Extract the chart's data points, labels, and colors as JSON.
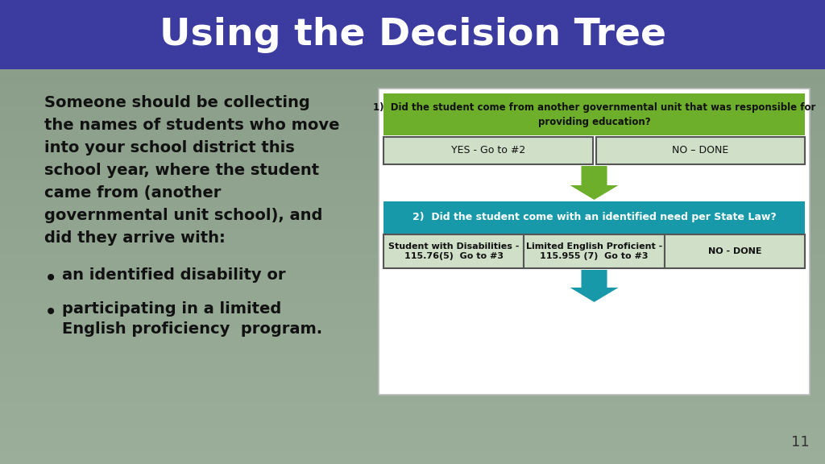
{
  "title": "Using the Decision Tree",
  "title_color": "#FFFFFF",
  "title_bg_color": "#3B3BA0",
  "bg_color": "#8A9E8A",
  "body_text_line1": "Someone should be collecting",
  "body_text_line2": "the names of students who move",
  "body_text_line3": "into your school district this",
  "body_text_line4": "school year, where the student",
  "body_text_line5": "came from (another",
  "body_text_line6": "governmental unit school), and",
  "body_text_line7": "did they arrive with:",
  "bullet1": "an identified disability or",
  "bullet2": "participating in a limited\nEnglish proficiency  program.",
  "q1_bg": "#6DAF2A",
  "q1_text_line1": "1)  Did the student come from another governmental unit that was responsible for",
  "q1_text_line2": "providing education?",
  "yes_text": "YES - Go to #2",
  "no_done1_text": "NO – DONE",
  "answer_bg": "#D0DFC8",
  "answer_border": "#555555",
  "q2_bg": "#1899AA",
  "q2_text": "2)  Did the student come with an identified need per State Law?",
  "q2_text_color": "#FFFFFF",
  "cell1_text": "Student with Disabilities -\n115.76(5)  Go to #3",
  "cell2_text": "Limited English Proficient -\n115.955 (7)  Go to #3",
  "cell3_text": "NO - DONE",
  "cell_bg": "#D0DFC8",
  "arrow1_color": "#6DAF2A",
  "arrow2_color": "#1899AA",
  "page_number": "11",
  "white_box_border": "#BBBBBB",
  "text_color": "#111111"
}
